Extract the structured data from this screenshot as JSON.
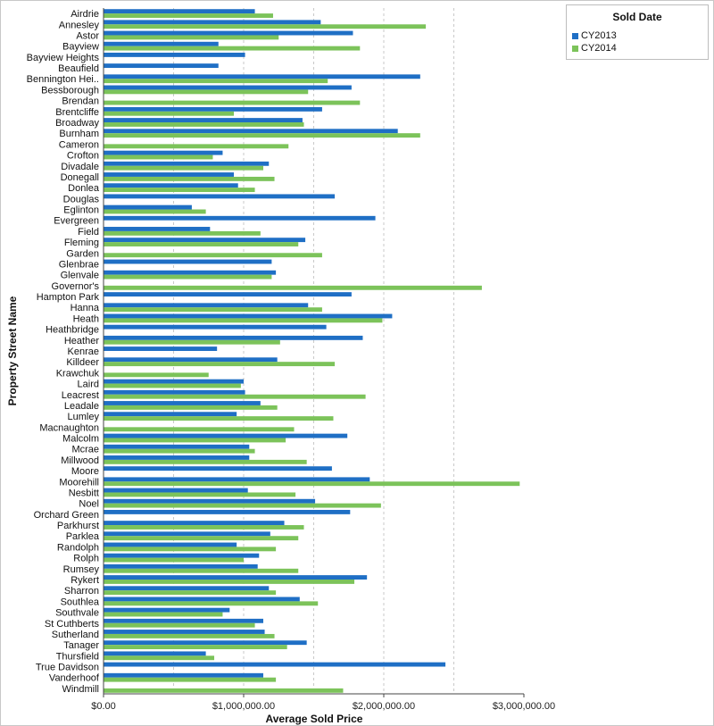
{
  "chart_data": {
    "type": "bar",
    "orientation": "horizontal",
    "xlabel": "Average Sold Price",
    "ylabel": "Property Street Name",
    "xlim": [
      0,
      3000000
    ],
    "x_ticks": [
      {
        "value": 0,
        "label": "$0.00"
      },
      {
        "value": 1000000,
        "label": "$1,000,000.00"
      },
      {
        "value": 2000000,
        "label": "$2,000,000.00"
      },
      {
        "value": 3000000,
        "label": "$3,000,000.00"
      }
    ],
    "gridlines": [
      500000,
      1000000,
      1500000,
      2000000,
      2500000
    ],
    "legend": {
      "title": "Sold Date",
      "position": "top-right"
    },
    "categories": [
      "Airdrie",
      "Annesley",
      "Astor",
      "Bayview",
      "Bayview Heights",
      "Beaufield",
      "Bennington Hei..",
      "Bessborough",
      "Brendan",
      "Brentcliffe",
      "Broadway",
      "Burnham",
      "Cameron",
      "Crofton",
      "Divadale",
      "Donegall",
      "Donlea",
      "Douglas",
      "Eglinton",
      "Evergreen",
      "Field",
      "Fleming",
      "Garden",
      "Glenbrae",
      "Glenvale",
      "Governor's",
      "Hampton Park",
      "Hanna",
      "Heath",
      "Heathbridge",
      "Heather",
      "Kenrae",
      "Killdeer",
      "Krawchuk",
      "Laird",
      "Leacrest",
      "Leadale",
      "Lumley",
      "Macnaughton",
      "Malcolm",
      "Mcrae",
      "Millwood",
      "Moore",
      "Moorehill",
      "Nesbitt",
      "Noel",
      "Orchard Green",
      "Parkhurst",
      "Parklea",
      "Randolph",
      "Rolph",
      "Rumsey",
      "Rykert",
      "Sharron",
      "Southlea",
      "Southvale",
      "St Cuthberts",
      "Sutherland",
      "Tanager",
      "Thursfield",
      "True Davidson",
      "Vanderhoof",
      "Windmill"
    ],
    "series": [
      {
        "name": "CY2013",
        "color": "#1f6fc5",
        "values": [
          1080000,
          1550000,
          1780000,
          820000,
          1010000,
          820000,
          2260000,
          1770000,
          null,
          1560000,
          1420000,
          2100000,
          null,
          850000,
          1180000,
          930000,
          960000,
          1650000,
          630000,
          1940000,
          760000,
          1440000,
          null,
          1200000,
          1230000,
          null,
          1770000,
          1460000,
          2060000,
          1590000,
          1850000,
          810000,
          1240000,
          null,
          1000000,
          1010000,
          1120000,
          950000,
          null,
          1740000,
          1040000,
          1040000,
          1630000,
          1900000,
          1030000,
          1510000,
          1760000,
          1290000,
          1190000,
          950000,
          1110000,
          1100000,
          1880000,
          1180000,
          1400000,
          900000,
          1140000,
          1150000,
          1450000,
          730000,
          2440000,
          1140000,
          null
        ]
      },
      {
        "name": "CY2014",
        "color": "#7cc35a",
        "values": [
          1210000,
          2300000,
          1250000,
          1830000,
          null,
          null,
          1600000,
          1460000,
          1830000,
          930000,
          1430000,
          2260000,
          1320000,
          780000,
          1140000,
          1220000,
          1080000,
          null,
          730000,
          null,
          1120000,
          1390000,
          1560000,
          null,
          1200000,
          2700000,
          null,
          1560000,
          1990000,
          null,
          1260000,
          null,
          1650000,
          750000,
          980000,
          1870000,
          1240000,
          1640000,
          1360000,
          1300000,
          1080000,
          1450000,
          null,
          2970000,
          1370000,
          1980000,
          null,
          1430000,
          1390000,
          1230000,
          1000000,
          1390000,
          1790000,
          1230000,
          1530000,
          850000,
          1080000,
          1220000,
          1310000,
          790000,
          null,
          1230000,
          1710000
        ]
      }
    ]
  }
}
